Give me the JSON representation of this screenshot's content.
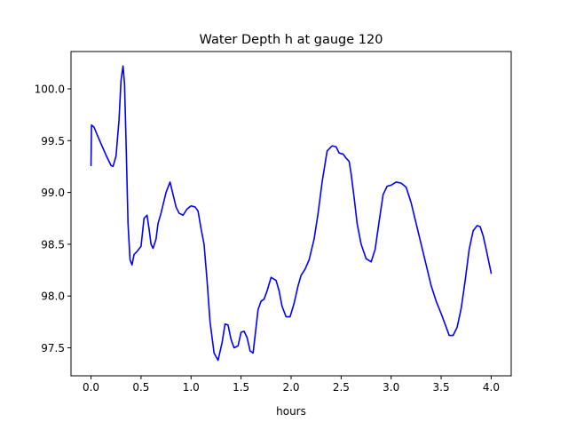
{
  "chart_data": {
    "type": "line",
    "title": "Water Depth h at gauge 120",
    "xlabel": "hours",
    "ylabel": "",
    "xlim": [
      -0.2,
      4.2
    ],
    "ylim": [
      97.23,
      100.36
    ],
    "xticks": [
      {
        "value": 0.0,
        "label": "0.0"
      },
      {
        "value": 0.5,
        "label": "0.5"
      },
      {
        "value": 1.0,
        "label": "1.0"
      },
      {
        "value": 1.5,
        "label": "1.5"
      },
      {
        "value": 2.0,
        "label": "2.0"
      },
      {
        "value": 2.5,
        "label": "2.5"
      },
      {
        "value": 3.0,
        "label": "3.0"
      },
      {
        "value": 3.5,
        "label": "3.5"
      },
      {
        "value": 4.0,
        "label": "4.0"
      }
    ],
    "yticks": [
      {
        "value": 97.5,
        "label": "97.5"
      },
      {
        "value": 98.0,
        "label": "98.0"
      },
      {
        "value": 98.5,
        "label": "98.5"
      },
      {
        "value": 99.0,
        "label": "99.0"
      },
      {
        "value": 99.5,
        "label": "99.5"
      },
      {
        "value": 100.0,
        "label": "100.0"
      }
    ],
    "grid": false,
    "series": [
      {
        "color": "#0000ff",
        "x": [
          0.0,
          0.005,
          0.03,
          0.06,
          0.1,
          0.15,
          0.2,
          0.22,
          0.25,
          0.28,
          0.3,
          0.32,
          0.335,
          0.35,
          0.37,
          0.39,
          0.41,
          0.43,
          0.46,
          0.5,
          0.53,
          0.56,
          0.58,
          0.6,
          0.62,
          0.65,
          0.67,
          0.7,
          0.75,
          0.79,
          0.82,
          0.85,
          0.88,
          0.92,
          0.96,
          1.0,
          1.04,
          1.07,
          1.1,
          1.13,
          1.16,
          1.19,
          1.23,
          1.27,
          1.31,
          1.34,
          1.37,
          1.4,
          1.43,
          1.47,
          1.5,
          1.53,
          1.56,
          1.59,
          1.62,
          1.65,
          1.67,
          1.7,
          1.73,
          1.76,
          1.8,
          1.85,
          1.88,
          1.91,
          1.95,
          1.99,
          2.03,
          2.07,
          2.1,
          2.14,
          2.18,
          2.23,
          2.27,
          2.31,
          2.36,
          2.41,
          2.45,
          2.48,
          2.52,
          2.55,
          2.58,
          2.6,
          2.63,
          2.66,
          2.7,
          2.75,
          2.8,
          2.84,
          2.88,
          2.92,
          2.96,
          3.0,
          3.05,
          3.1,
          3.15,
          3.2,
          3.25,
          3.3,
          3.35,
          3.4,
          3.45,
          3.5,
          3.55,
          3.58,
          3.62,
          3.66,
          3.7,
          3.74,
          3.78,
          3.82,
          3.86,
          3.89,
          3.92,
          3.95,
          4.0
        ],
        "y": [
          99.26,
          99.65,
          99.63,
          99.56,
          99.47,
          99.36,
          99.26,
          99.25,
          99.35,
          99.7,
          100.08,
          100.22,
          100.05,
          99.5,
          98.7,
          98.35,
          98.3,
          98.4,
          98.43,
          98.48,
          98.75,
          98.78,
          98.65,
          98.5,
          98.46,
          98.55,
          98.7,
          98.8,
          99.0,
          99.1,
          98.98,
          98.86,
          98.8,
          98.78,
          98.84,
          98.87,
          98.86,
          98.82,
          98.65,
          98.5,
          98.15,
          97.75,
          97.45,
          97.38,
          97.55,
          97.73,
          97.72,
          97.58,
          97.5,
          97.52,
          97.65,
          97.66,
          97.6,
          97.47,
          97.45,
          97.7,
          97.87,
          97.95,
          97.97,
          98.05,
          98.18,
          98.15,
          98.05,
          97.9,
          97.8,
          97.8,
          97.93,
          98.1,
          98.2,
          98.26,
          98.35,
          98.55,
          98.8,
          99.1,
          99.4,
          99.45,
          99.44,
          99.38,
          99.37,
          99.33,
          99.3,
          99.18,
          98.95,
          98.7,
          98.5,
          98.36,
          98.33,
          98.45,
          98.72,
          98.98,
          99.06,
          99.07,
          99.1,
          99.09,
          99.05,
          98.9,
          98.7,
          98.5,
          98.3,
          98.1,
          97.95,
          97.83,
          97.7,
          97.62,
          97.62,
          97.7,
          97.88,
          98.15,
          98.45,
          98.63,
          98.68,
          98.67,
          98.58,
          98.45,
          98.22
        ]
      }
    ]
  }
}
